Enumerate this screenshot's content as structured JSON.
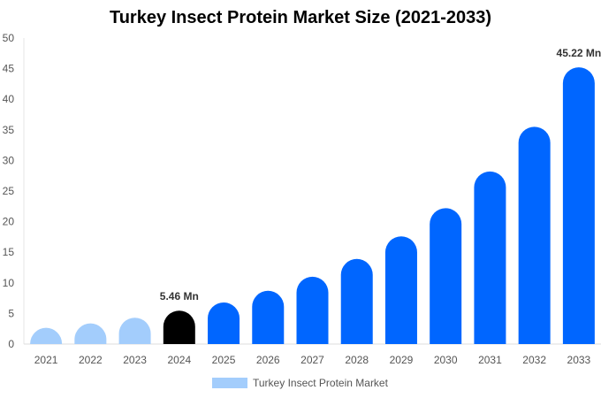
{
  "chart_data": {
    "type": "bar",
    "title": "Turkey Insect Protein Market Size (2021-2033)",
    "xlabel": "",
    "ylabel": "",
    "ylim": [
      0,
      50
    ],
    "yticks": [
      0,
      5,
      10,
      15,
      20,
      25,
      30,
      35,
      40,
      45,
      50
    ],
    "categories": [
      "2021",
      "2022",
      "2023",
      "2024",
      "2025",
      "2026",
      "2027",
      "2028",
      "2029",
      "2030",
      "2031",
      "2032",
      "2033"
    ],
    "series": [
      {
        "name": "Turkey Insect Protein Market",
        "values": [
          2.65,
          3.37,
          4.3,
          5.46,
          6.8,
          8.7,
          11.0,
          13.9,
          17.6,
          22.2,
          28.2,
          35.5,
          45.22
        ]
      }
    ],
    "bar_colors": [
      "#a3cdfc",
      "#a3cdfc",
      "#a3cdfc",
      "#000000",
      "#0066ff",
      "#0066ff",
      "#0066ff",
      "#0066ff",
      "#0066ff",
      "#0066ff",
      "#0066ff",
      "#0066ff",
      "#0066ff"
    ],
    "data_labels": [
      {
        "index": 3,
        "text": "5.46 Mn"
      },
      {
        "index": 12,
        "text": "45.22 Mn"
      }
    ],
    "legend_position": "bottom",
    "grid": false
  }
}
